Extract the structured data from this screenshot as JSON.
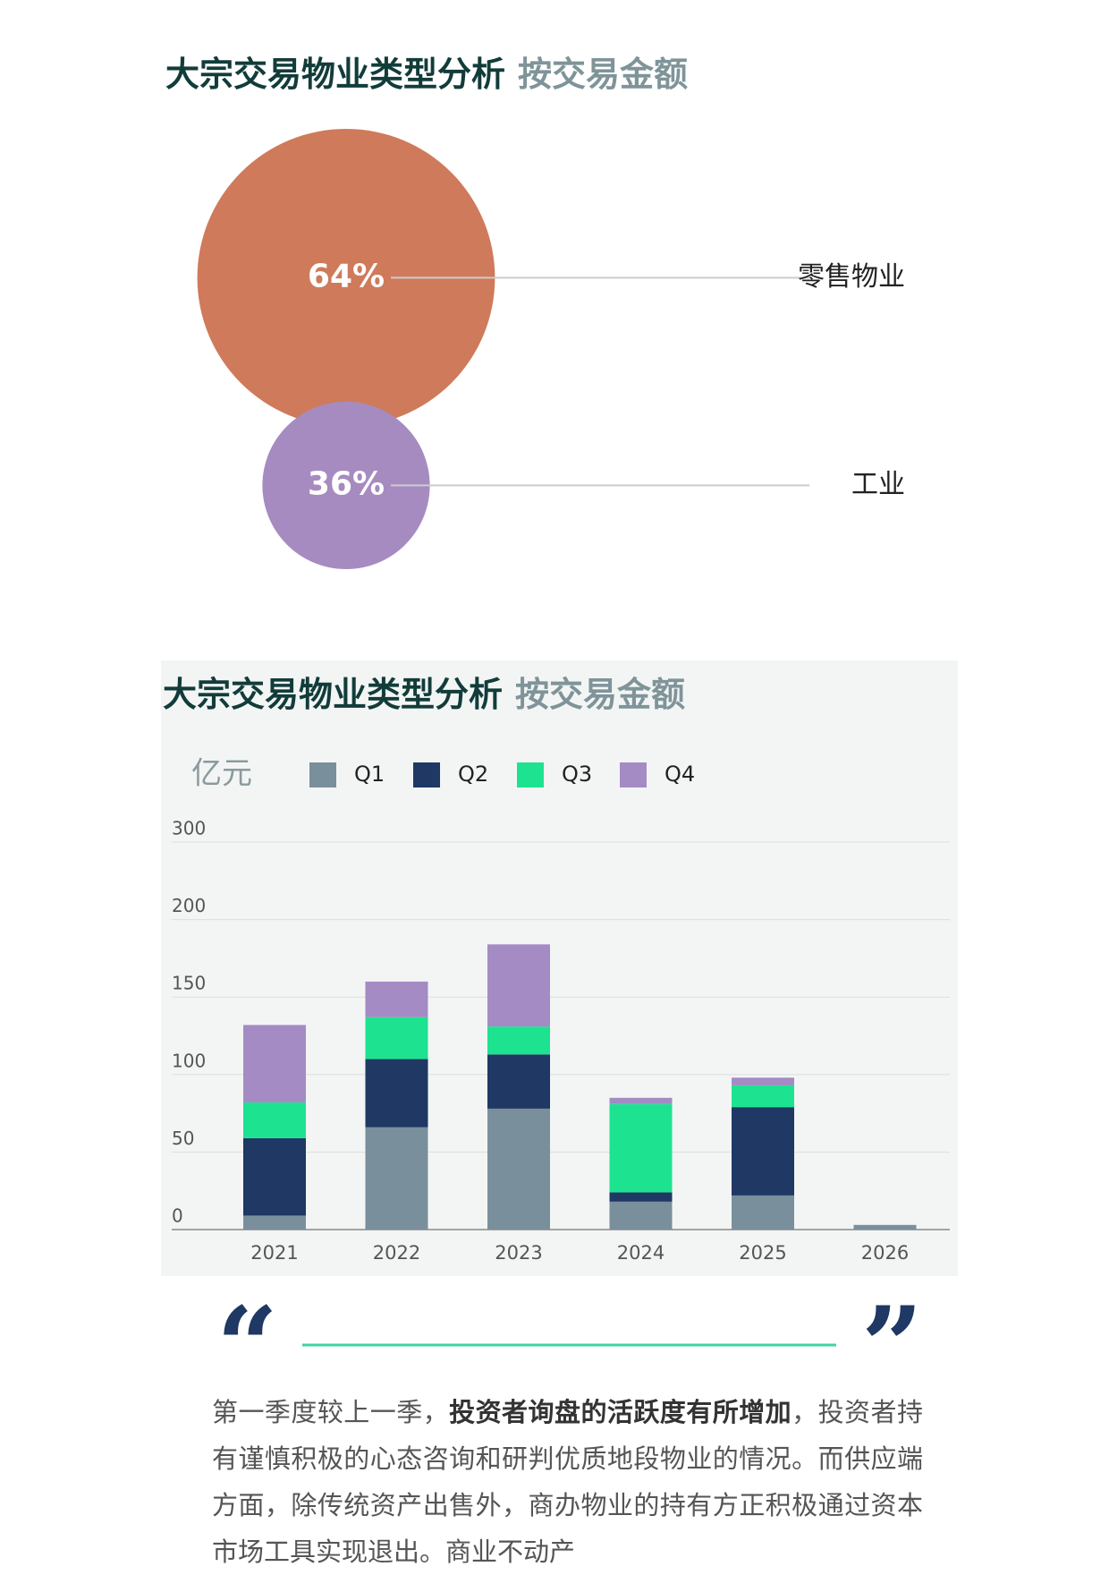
{
  "chart_data": [
    {
      "type": "bubble",
      "title": "大宗交易物业类型分析",
      "subtitle": "按交易金额",
      "categories": [
        "零售物业",
        "工业"
      ],
      "values": [
        64,
        36
      ],
      "value_labels": [
        "64%",
        "36%"
      ],
      "colors": [
        "#cf7a5b",
        "#a68bc1"
      ]
    },
    {
      "type": "bar",
      "stacked": true,
      "title": "大宗交易物业类型分析",
      "subtitle": "按交易金额",
      "y_label": "亿元",
      "categories": [
        "2021",
        "2022",
        "2023",
        "2024",
        "2025",
        "2026"
      ],
      "series": [
        {
          "name": "Q1",
          "color": "#7a8f9c",
          "values": [
            9,
            66,
            78,
            18,
            22,
            3
          ]
        },
        {
          "name": "Q2",
          "color": "#1f3864",
          "values": [
            50,
            44,
            35,
            6,
            57,
            0
          ]
        },
        {
          "name": "Q3",
          "color": "#1de390",
          "values": [
            23,
            27,
            18,
            57,
            14,
            0
          ]
        },
        {
          "name": "Q4",
          "color": "#a48bc4",
          "values": [
            50,
            23,
            53,
            4,
            5,
            0
          ]
        }
      ],
      "ylim": [
        0,
        300
      ],
      "yticks": [
        0,
        50,
        100,
        150,
        200,
        300
      ],
      "grid": true
    }
  ],
  "quote": {
    "open": "“",
    "close": "”",
    "paragraph": [
      {
        "text": "第一季度较上一季，",
        "bold": false
      },
      {
        "text": "投资者询盘的活跃度有所增加",
        "bold": true
      },
      {
        "text": "，投资者持有谨慎积极的心态咨询和研判优质地段物业的情况。而供应端方面，除传统资产出售外，商办物业的持有方正积极通过资本市场工具实现退出。商业不动产",
        "bold": false
      }
    ]
  }
}
